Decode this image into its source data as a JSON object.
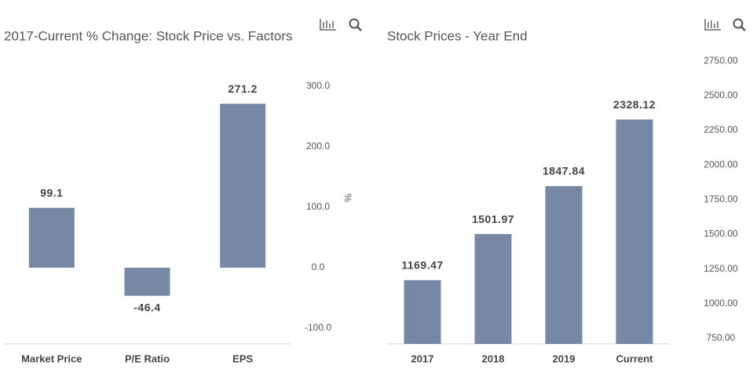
{
  "chart_data": [
    {
      "type": "bar",
      "title": "2017-Current % Change: Stock Price vs. Factors",
      "categories": [
        "Market Price",
        "P/E Ratio",
        "EPS"
      ],
      "values": [
        99.1,
        -46.4,
        271.2
      ],
      "color": "#7788a5",
      "ylabel": "%",
      "ylim": [
        -126,
        339
      ],
      "yticks": [
        {
          "value": -100,
          "label": "-100.0"
        },
        {
          "value": 0,
          "label": "0.0"
        },
        {
          "value": 100,
          "label": "100.0"
        },
        {
          "value": 200,
          "label": "200.0"
        },
        {
          "value": 300,
          "label": "300.0"
        }
      ]
    },
    {
      "type": "bar",
      "title": "Stock Prices - Year End",
      "categories": [
        "2017",
        "2018",
        "2019",
        "Current"
      ],
      "values": [
        1169.47,
        1501.97,
        1847.84,
        2328.12
      ],
      "color": "#7788a5",
      "ylim": [
        710,
        2850
      ],
      "yticks": [
        {
          "value": 750,
          "label": "750.00"
        },
        {
          "value": 1000,
          "label": "1000.00"
        },
        {
          "value": 1250,
          "label": "1250.00"
        },
        {
          "value": 1500,
          "label": "1500.00"
        },
        {
          "value": 1750,
          "label": "1750.00"
        },
        {
          "value": 2000,
          "label": "2000.00"
        },
        {
          "value": 2250,
          "label": "2250.00"
        },
        {
          "value": 2500,
          "label": "2500.00"
        },
        {
          "value": 2750,
          "label": "2750.00"
        }
      ]
    }
  ]
}
